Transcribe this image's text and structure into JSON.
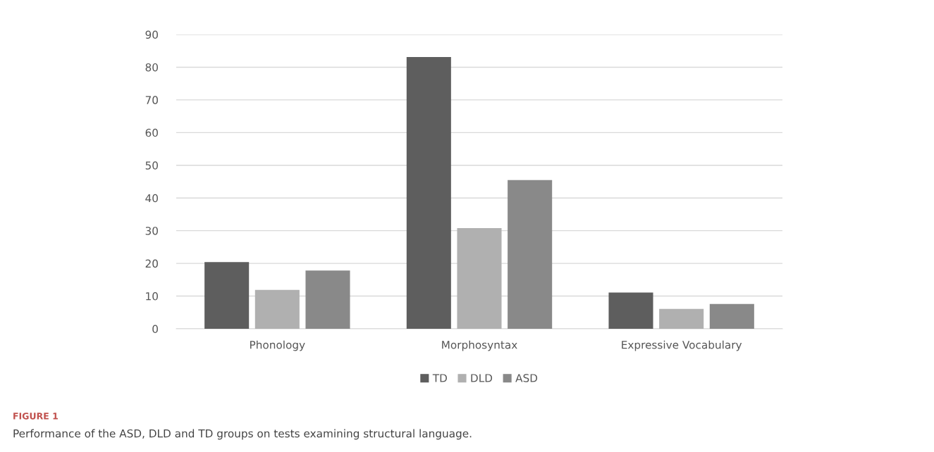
{
  "chart_data": {
    "type": "bar",
    "categories": [
      "Phonology",
      "Morphosyntax",
      "Expressive Vocabulary"
    ],
    "series": [
      {
        "name": "TD",
        "color": "#5e5e5e",
        "values": [
          20.4,
          83.1,
          11.1
        ]
      },
      {
        "name": "DLD",
        "color": "#b0b0b0",
        "values": [
          11.9,
          30.8,
          6.1
        ]
      },
      {
        "name": "ASD",
        "color": "#898989",
        "values": [
          17.8,
          45.5,
          7.6
        ]
      }
    ],
    "ylim": [
      0,
      90
    ],
    "yticks": [
      0,
      10,
      20,
      30,
      40,
      50,
      60,
      70,
      80,
      90
    ],
    "grid": "y",
    "legend": "bottom",
    "annotations": [
      "FIGURE 1",
      "Performance of the ASD, DLD and TD groups on tests examining structural language."
    ]
  }
}
